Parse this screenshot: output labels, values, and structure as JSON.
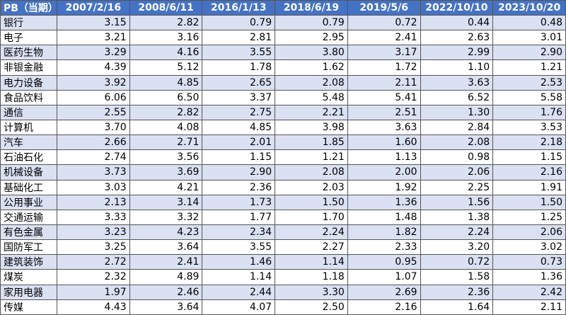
{
  "table": {
    "header": [
      "PB（当期）",
      "2007/2/16",
      "2008/6/11",
      "2016/1/13",
      "2018/6/19",
      "2019/5/6",
      "2022/10/10",
      "2023/10/20"
    ],
    "rows": [
      [
        "银行",
        "3.15",
        "2.82",
        "0.79",
        "0.79",
        "0.72",
        "0.44",
        "0.48"
      ],
      [
        "电子",
        "3.21",
        "3.16",
        "2.81",
        "2.95",
        "2.41",
        "2.63",
        "3.01"
      ],
      [
        "医药生物",
        "3.29",
        "4.16",
        "3.55",
        "3.80",
        "3.17",
        "2.99",
        "2.90"
      ],
      [
        "非银金融",
        "4.39",
        "5.12",
        "1.78",
        "1.62",
        "1.72",
        "1.10",
        "1.21"
      ],
      [
        "电力设备",
        "3.92",
        "4.85",
        "2.65",
        "2.08",
        "2.11",
        "3.63",
        "2.53"
      ],
      [
        "食品饮料",
        "6.06",
        "6.50",
        "3.37",
        "5.48",
        "5.41",
        "6.52",
        "5.58"
      ],
      [
        "通信",
        "2.55",
        "2.82",
        "2.75",
        "2.21",
        "2.51",
        "1.30",
        "1.76"
      ],
      [
        "计算机",
        "3.70",
        "4.08",
        "4.85",
        "3.98",
        "3.63",
        "2.84",
        "3.53"
      ],
      [
        "汽车",
        "2.66",
        "2.71",
        "2.01",
        "1.85",
        "1.60",
        "2.08",
        "2.18"
      ],
      [
        "石油石化",
        "2.74",
        "3.56",
        "1.15",
        "1.21",
        "1.13",
        "0.98",
        "1.15"
      ],
      [
        "机械设备",
        "3.73",
        "3.69",
        "2.90",
        "2.08",
        "2.00",
        "2.06",
        "2.16"
      ],
      [
        "基础化工",
        "3.03",
        "4.21",
        "2.36",
        "2.03",
        "1.92",
        "2.25",
        "1.91"
      ],
      [
        "公用事业",
        "2.13",
        "3.14",
        "1.73",
        "1.50",
        "1.36",
        "1.56",
        "1.50"
      ],
      [
        "交通运输",
        "3.33",
        "3.32",
        "1.77",
        "1.70",
        "1.48",
        "1.38",
        "1.25"
      ],
      [
        "有色金属",
        "3.23",
        "4.23",
        "2.34",
        "2.24",
        "1.82",
        "2.24",
        "2.06"
      ],
      [
        "国防军工",
        "3.25",
        "3.64",
        "3.55",
        "2.27",
        "2.33",
        "3.20",
        "3.02"
      ],
      [
        "建筑装饰",
        "2.72",
        "2.41",
        "1.46",
        "1.14",
        "0.95",
        "0.72",
        "0.73"
      ],
      [
        "煤炭",
        "2.32",
        "4.89",
        "1.14",
        "1.18",
        "1.07",
        "1.58",
        "1.36"
      ],
      [
        "家用电器",
        "1.97",
        "2.46",
        "2.44",
        "3.30",
        "2.69",
        "2.36",
        "2.42"
      ],
      [
        "传媒",
        "4.43",
        "3.64",
        "4.07",
        "2.50",
        "2.16",
        "1.64",
        "2.11"
      ]
    ]
  }
}
